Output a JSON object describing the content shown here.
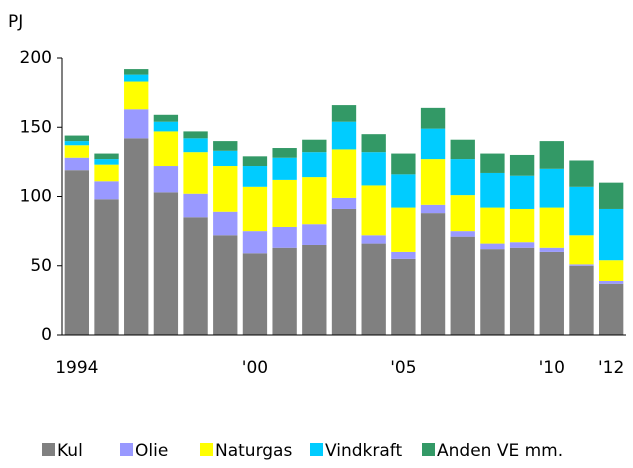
{
  "chart_data": {
    "type": "stacked_bar",
    "y_label": "PJ",
    "categories": [
      "1994",
      null,
      null,
      null,
      null,
      null,
      "'00",
      null,
      null,
      null,
      null,
      "'05",
      null,
      null,
      null,
      null,
      "'10",
      null,
      "'12"
    ],
    "series": [
      {
        "name": "Kul",
        "color": "#808080",
        "values": [
          119,
          98,
          142,
          103,
          85,
          72,
          59,
          63,
          65,
          91,
          66,
          55,
          88,
          71,
          62,
          63,
          60,
          50,
          37
        ]
      },
      {
        "name": "Olie",
        "color": "#9999ff",
        "values": [
          9,
          13,
          21,
          19,
          17,
          17,
          16,
          15,
          15,
          8,
          6,
          5,
          6,
          4,
          4,
          4,
          3,
          1,
          2
        ]
      },
      {
        "name": "Naturgas",
        "color": "#ffff00",
        "values": [
          9,
          12,
          20,
          25,
          30,
          33,
          32,
          34,
          34,
          35,
          36,
          32,
          33,
          26,
          26,
          24,
          29,
          21,
          15
        ]
      },
      {
        "name": "Vindkraft",
        "color": "#00ccff",
        "values": [
          3,
          4,
          5,
          7,
          10,
          11,
          15,
          16,
          18,
          20,
          24,
          24,
          22,
          26,
          25,
          24,
          28,
          35,
          37
        ]
      },
      {
        "name": "Anden VE mm.",
        "color": "#339966",
        "values": [
          4,
          4,
          4,
          5,
          5,
          7,
          7,
          7,
          9,
          12,
          13,
          15,
          15,
          14,
          14,
          15,
          20,
          19,
          19
        ]
      }
    ],
    "ylim": [
      0,
      200
    ],
    "yticks": [
      0,
      50,
      100,
      150,
      200
    ],
    "grid": false
  }
}
